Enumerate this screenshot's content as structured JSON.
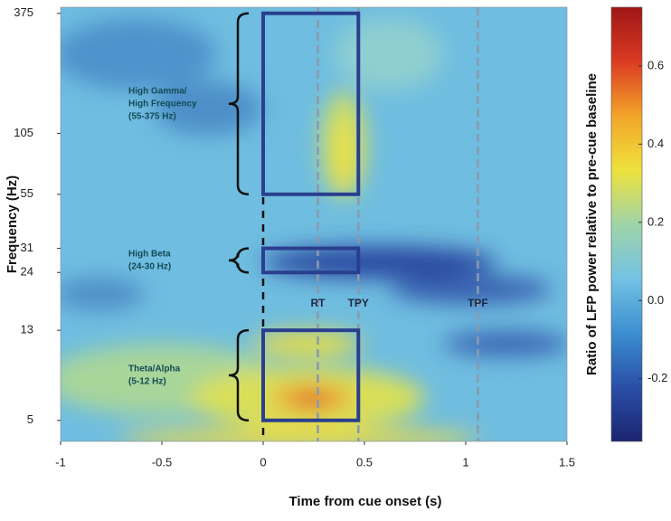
{
  "chart_data": {
    "type": "heatmap",
    "xlabel": "Time from cue onset (s)",
    "ylabel": "Frequency (Hz)",
    "xlim": [
      -1,
      1.5
    ],
    "xticks": [
      -1,
      -0.5,
      0,
      0.5,
      1,
      1.5
    ],
    "ylim": [
      4,
      400
    ],
    "yscale": "log",
    "yticks": [
      5,
      13,
      24,
      31,
      55,
      105,
      375
    ],
    "colorbar": {
      "label": "Ratio of LFP power relative to pre-cue baseline",
      "lim": [
        -0.36,
        0.75
      ],
      "ticks": [
        -0.2,
        {
          "value": 0,
          "label": "0.0"
        },
        0.2,
        0.4,
        0.6
      ],
      "colormap": [
        "#1b2470",
        "#2a4fa8",
        "#3b8fd0",
        "#74c2e4",
        "#9fd4a8",
        "#eee23c",
        "#f3a42a",
        "#db3b22",
        "#9e1616"
      ]
    },
    "bands": [
      {
        "lines": [
          "High Gamma/",
          "High Frequency",
          "(55-375 Hz)"
        ],
        "fmin": 55,
        "fmax": 375,
        "tmin": 0,
        "tmax": 0.47
      },
      {
        "lines": [
          "High Beta",
          "(24-30 Hz)"
        ],
        "fmin": 24,
        "fmax": 31,
        "tmin": 0,
        "tmax": 0.47
      },
      {
        "lines": [
          "Theta/Alpha",
          "(5-12 Hz)"
        ],
        "fmin": 5,
        "fmax": 13,
        "tmin": 0,
        "tmax": 0.47
      }
    ],
    "events": [
      {
        "label": "RT",
        "x": 0.27
      },
      {
        "label": "TPY",
        "x": 0.47
      },
      {
        "label": "TPF",
        "x": 1.06
      }
    ]
  }
}
